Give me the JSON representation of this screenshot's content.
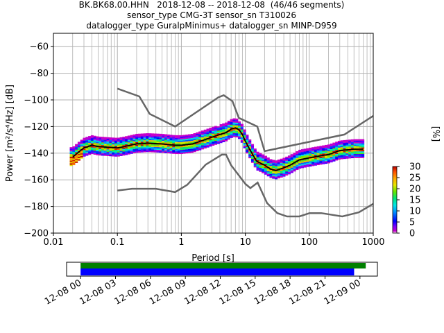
{
  "header": {
    "line1": "BK.BK68.00.HHN   2018-12-08 -- 2018-12-08  (46/46 segments)",
    "line2": "sensor_type CMG-3T sensor_sn T310026",
    "line3": "datalogger_type GuralpMinimus+ datalogger_sn MINP-D959"
  },
  "colors": {
    "mode": "#000000",
    "noise_models": "#666666",
    "grid": "#b0b0b0",
    "coverage_available": "#008000",
    "coverage_used": "#0000ff"
  },
  "chart_data": [
    {
      "type": "heatmap",
      "title": "",
      "xlabel": "Period [s]",
      "ylabel": "Power [m²/s⁴/Hz] [dB]",
      "xscale": "log",
      "xlim": [
        0.01,
        1000
      ],
      "ylim": [
        -200,
        -50
      ],
      "grid": true,
      "x_ticks": [
        {
          "v": 0.01,
          "label": "0.01"
        },
        {
          "v": 0.1,
          "label": "0.1"
        },
        {
          "v": 1,
          "label": "1"
        },
        {
          "v": 10,
          "label": "10"
        },
        {
          "v": 100,
          "label": "100"
        },
        {
          "v": 1000,
          "label": "1000"
        }
      ],
      "y_ticks": [
        {
          "v": -60,
          "label": "−60"
        },
        {
          "v": -80,
          "label": "−80"
        },
        {
          "v": -100,
          "label": "−100"
        },
        {
          "v": -120,
          "label": "−120"
        },
        {
          "v": -140,
          "label": "−140"
        },
        {
          "v": -160,
          "label": "−160"
        },
        {
          "v": -180,
          "label": "−180"
        },
        {
          "v": -200,
          "label": "−200"
        }
      ],
      "colorbar": {
        "label": "[%]",
        "range": [
          0,
          30
        ],
        "ticks": [
          {
            "v": 0,
            "label": "0"
          },
          {
            "v": 5,
            "label": "5"
          },
          {
            "v": 10,
            "label": "10"
          },
          {
            "v": 15,
            "label": "15"
          },
          {
            "v": 20,
            "label": "20"
          },
          {
            "v": 25,
            "label": "25"
          },
          {
            "v": 30,
            "label": "30"
          }
        ]
      },
      "mode_curve": [
        [
          0.02,
          -143
        ],
        [
          0.025,
          -139
        ],
        [
          0.03,
          -136
        ],
        [
          0.04,
          -134
        ],
        [
          0.05,
          -135
        ],
        [
          0.07,
          -135.5
        ],
        [
          0.1,
          -136
        ],
        [
          0.13,
          -135
        ],
        [
          0.2,
          -133
        ],
        [
          0.3,
          -132.5
        ],
        [
          0.5,
          -133
        ],
        [
          0.8,
          -134
        ],
        [
          1,
          -134
        ],
        [
          1.5,
          -133
        ],
        [
          2,
          -131
        ],
        [
          3,
          -128
        ],
        [
          4,
          -126
        ],
        [
          5,
          -124.5
        ],
        [
          6,
          -122
        ],
        [
          7,
          -121
        ],
        [
          8,
          -122.5
        ],
        [
          9,
          -126
        ],
        [
          10,
          -131
        ],
        [
          12,
          -138
        ],
        [
          15,
          -146
        ],
        [
          20,
          -149
        ],
        [
          25,
          -152
        ],
        [
          30,
          -153
        ],
        [
          40,
          -151
        ],
        [
          50,
          -149
        ],
        [
          70,
          -145
        ],
        [
          100,
          -143.5
        ],
        [
          150,
          -142
        ],
        [
          200,
          -141
        ],
        [
          300,
          -138
        ],
        [
          500,
          -137
        ],
        [
          700,
          -137
        ]
      ],
      "spread": {
        "period_range": [
          0.018,
          720
        ],
        "upper_offset_db": 7,
        "lower_offset_db": 6
      },
      "noise_model_high": [
        [
          0.1,
          -91.5
        ],
        [
          0.22,
          -97.4
        ],
        [
          0.32,
          -110.5
        ],
        [
          0.8,
          -120
        ],
        [
          3.8,
          -98
        ],
        [
          4.6,
          -96.5
        ],
        [
          6.3,
          -101
        ],
        [
          7.9,
          -113.5
        ],
        [
          15.4,
          -120
        ],
        [
          20,
          -138.5
        ],
        [
          354.8,
          -126
        ],
        [
          1000,
          -112
        ]
      ],
      "noise_model_low": [
        [
          0.1,
          -168
        ],
        [
          0.17,
          -166.7
        ],
        [
          0.4,
          -166.7
        ],
        [
          0.8,
          -169.2
        ],
        [
          1.24,
          -163.7
        ],
        [
          2.4,
          -148.6
        ],
        [
          4.3,
          -141.1
        ],
        [
          5,
          -141.1
        ],
        [
          6,
          -149
        ],
        [
          10,
          -163
        ],
        [
          12,
          -166.2
        ],
        [
          15.6,
          -162.1
        ],
        [
          21.9,
          -177.5
        ],
        [
          31.6,
          -185
        ],
        [
          45,
          -187.5
        ],
        [
          70,
          -187.5
        ],
        [
          101,
          -185
        ],
        [
          154,
          -185
        ],
        [
          328,
          -187.5
        ],
        [
          600,
          -184.4
        ],
        [
          1000,
          -178
        ]
      ]
    },
    {
      "type": "timeline",
      "tick_labels": [
        "12-08 00",
        "12-08 03",
        "12-08 06",
        "12-08 09",
        "12-08 12",
        "12-08 15",
        "12-08 18",
        "12-08 21",
        "12-09 00"
      ],
      "xlim_hours": [
        -1.2,
        25.5
      ],
      "available": [
        0,
        24.5
      ],
      "used": [
        0,
        23.5
      ]
    }
  ]
}
